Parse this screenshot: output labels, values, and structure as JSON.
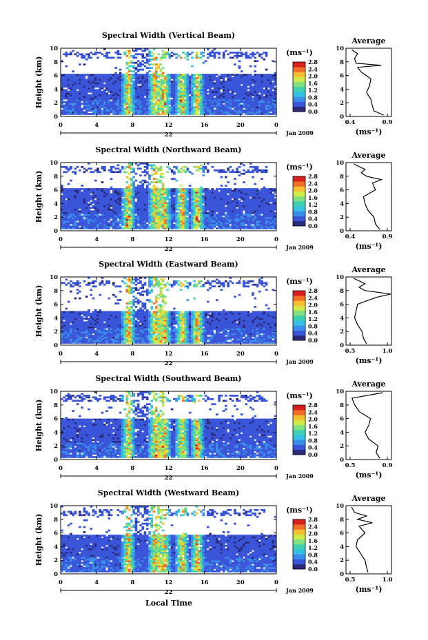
{
  "figure": {
    "x_label": "Local Time",
    "month_label": "Jan 2009",
    "avg_title": "Average",
    "y_label": "Height (km)",
    "unit_label": "(ms⁻¹)",
    "avg_unit_label": "(ms⁻¹)",
    "colorbar_ticks": [
      "0.0",
      "0.4",
      "0.8",
      "1.2",
      "1.6",
      "2.0",
      "2.4",
      "2.8"
    ],
    "x_ticks": [
      "0",
      "4",
      "8",
      "12",
      "16",
      "20",
      "0"
    ],
    "y_ticks": [
      "0",
      "2",
      "4",
      "6",
      "8",
      "10"
    ]
  },
  "chart_data": [
    {
      "type": "heatmap",
      "title": "Spectral Width (Vertical Beam)",
      "date_label": "22",
      "x_range_hours": [
        0,
        24
      ],
      "ylim": [
        0,
        10
      ],
      "colorbar_range": [
        0.0,
        2.8
      ],
      "average": {
        "type": "line",
        "xlim": [
          0.4,
          0.9
        ],
        "x_ticks": [
          "0.4",
          "0.9"
        ],
        "profile": [
          [
            0.2,
            0.85
          ],
          [
            0.8,
            0.72
          ],
          [
            1.5,
            0.7
          ],
          [
            2.5,
            0.68
          ],
          [
            3.5,
            0.62
          ],
          [
            4.5,
            0.66
          ],
          [
            5.5,
            0.68
          ],
          [
            6.5,
            0.55
          ],
          [
            7.2,
            0.5
          ],
          [
            7.5,
            0.82
          ],
          [
            7.8,
            0.48
          ],
          [
            8.5,
            0.46
          ],
          [
            9.2,
            0.5
          ],
          [
            9.8,
            0.42
          ]
        ]
      }
    },
    {
      "type": "heatmap",
      "title": "Spectral Width (Northward Beam)",
      "date_label": "22",
      "x_range_hours": [
        0,
        24
      ],
      "ylim": [
        0,
        10
      ],
      "colorbar_range": [
        0.0,
        2.8
      ],
      "average": {
        "type": "line",
        "xlim": [
          0.4,
          0.9
        ],
        "x_ticks": [
          "0.4",
          "0.9"
        ],
        "profile": [
          [
            0.2,
            0.8
          ],
          [
            1.0,
            0.74
          ],
          [
            2.0,
            0.72
          ],
          [
            3.0,
            0.64
          ],
          [
            4.0,
            0.6
          ],
          [
            5.0,
            0.58
          ],
          [
            6.0,
            0.74
          ],
          [
            7.0,
            0.7
          ],
          [
            7.5,
            0.82
          ],
          [
            8.0,
            0.62
          ],
          [
            8.5,
            0.55
          ],
          [
            9.0,
            0.6
          ],
          [
            9.8,
            0.45
          ]
        ]
      }
    },
    {
      "type": "heatmap",
      "title": "Spectral Width (Eastward Beam)",
      "date_label": "22",
      "x_range_hours": [
        0,
        24
      ],
      "ylim": [
        0,
        10
      ],
      "colorbar_range": [
        0.0,
        2.8
      ],
      "average": {
        "type": "line",
        "xlim": [
          0.5,
          1.0
        ],
        "x_ticks": [
          "0.5",
          "1.0"
        ],
        "profile": [
          [
            0.2,
            0.72
          ],
          [
            1.0,
            0.68
          ],
          [
            2.0,
            0.66
          ],
          [
            3.0,
            0.6
          ],
          [
            4.0,
            0.56
          ],
          [
            5.0,
            0.58
          ],
          [
            6.0,
            0.6
          ],
          [
            7.0,
            0.85
          ],
          [
            7.5,
            1.05
          ],
          [
            8.0,
            0.7
          ],
          [
            8.5,
            0.62
          ],
          [
            9.0,
            0.7
          ],
          [
            9.8,
            0.55
          ]
        ]
      }
    },
    {
      "type": "heatmap",
      "title": "Spectral Width (Southward Beam)",
      "date_label": "22",
      "x_range_hours": [
        0,
        24
      ],
      "ylim": [
        0,
        10
      ],
      "colorbar_range": [
        0.0,
        2.8
      ],
      "average": {
        "type": "line",
        "xlim": [
          0.5,
          0.9
        ],
        "x_ticks": [
          "0.5",
          "0.9"
        ],
        "profile": [
          [
            0.2,
            0.82
          ],
          [
            1.0,
            0.78
          ],
          [
            2.0,
            0.8
          ],
          [
            3.0,
            0.7
          ],
          [
            4.0,
            0.66
          ],
          [
            5.0,
            0.7
          ],
          [
            6.0,
            0.72
          ],
          [
            7.0,
            0.6
          ],
          [
            8.0,
            0.55
          ],
          [
            9.0,
            0.52
          ],
          [
            9.8,
            0.85
          ]
        ]
      }
    },
    {
      "type": "heatmap",
      "title": "Spectral Width (Westward Beam)",
      "date_label": "22",
      "x_range_hours": [
        0,
        24
      ],
      "ylim": [
        0,
        10
      ],
      "colorbar_range": [
        0.0,
        2.8
      ],
      "average": {
        "type": "line",
        "xlim": [
          0.5,
          1.0
        ],
        "x_ticks": [
          "0.5",
          "1.0"
        ],
        "profile": [
          [
            0.2,
            0.74
          ],
          [
            1.0,
            0.72
          ],
          [
            2.0,
            0.7
          ],
          [
            3.0,
            0.64
          ],
          [
            4.0,
            0.58
          ],
          [
            5.0,
            0.6
          ],
          [
            6.0,
            0.7
          ],
          [
            7.0,
            0.62
          ],
          [
            7.5,
            0.8
          ],
          [
            8.0,
            0.6
          ],
          [
            8.5,
            0.72
          ],
          [
            9.0,
            0.56
          ],
          [
            9.8,
            0.52
          ]
        ]
      }
    }
  ],
  "colors": {
    "background": "#ffffff",
    "colormap": [
      "#2a2a7a",
      "#3a55d8",
      "#3a8de8",
      "#38c0e0",
      "#40d0b0",
      "#80e080",
      "#d0e848",
      "#f4c030",
      "#f07028",
      "#d82020"
    ]
  }
}
